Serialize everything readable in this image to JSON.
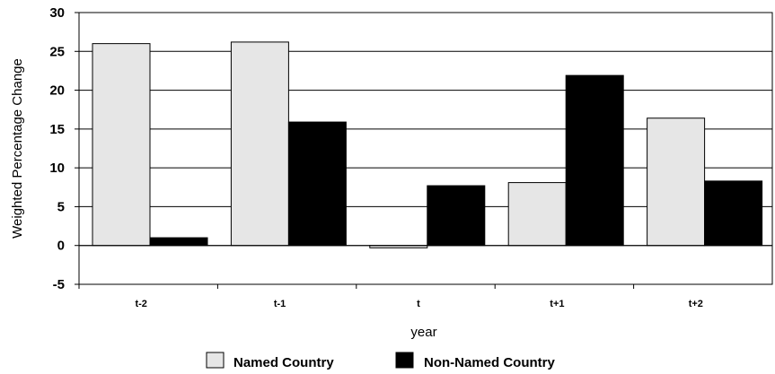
{
  "chart_data": {
    "type": "bar",
    "categories": [
      "t-2",
      "t-1",
      "t",
      "t+1",
      "t+2"
    ],
    "series": [
      {
        "name": "Named Country",
        "values": [
          26.0,
          26.2,
          -0.3,
          8.1,
          16.4
        ],
        "color": "#e6e6e6"
      },
      {
        "name": "Non-Named Country",
        "values": [
          1.0,
          15.9,
          7.7,
          21.9,
          8.3
        ],
        "color": "#000000"
      }
    ],
    "xlabel": "year",
    "ylabel": "Weighted Percentage Change",
    "ylim": [
      -5,
      30
    ],
    "yticks": [
      30,
      25,
      20,
      15,
      10,
      5,
      0,
      -5
    ],
    "grid": true,
    "legend_position": "bottom"
  }
}
